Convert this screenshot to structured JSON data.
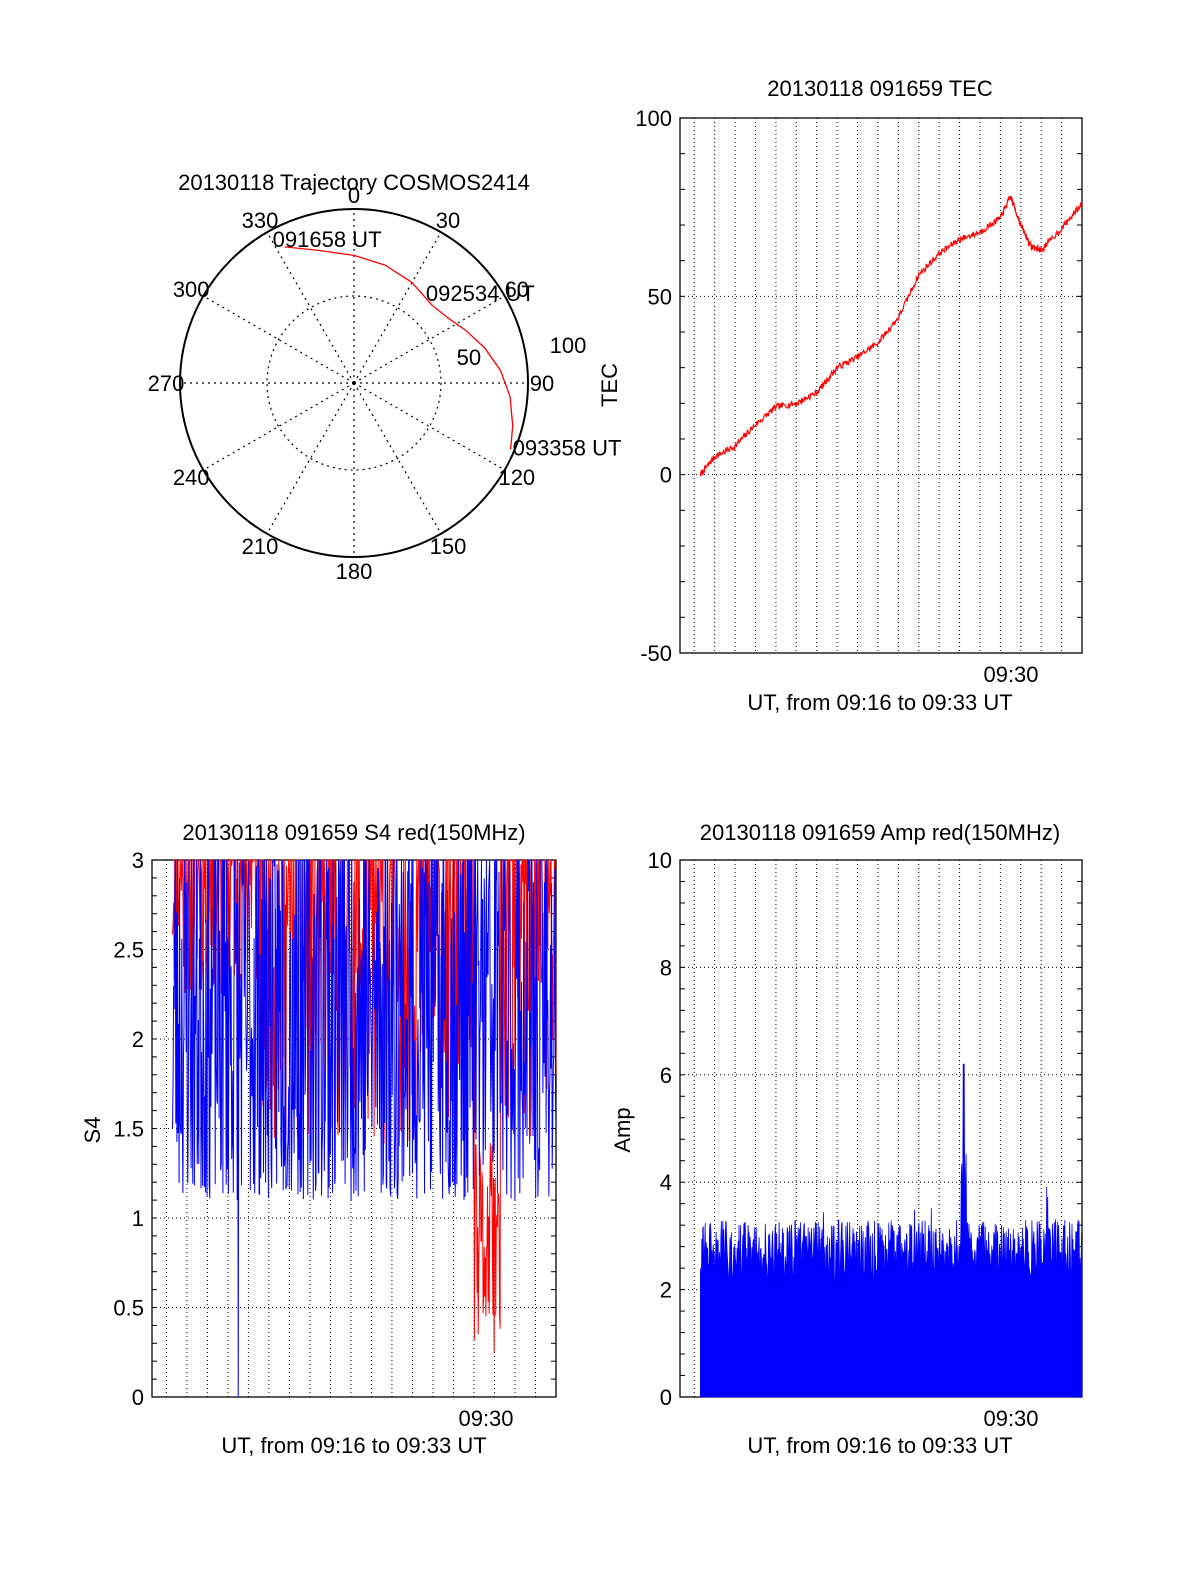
{
  "chart_data": [
    {
      "type": "polar",
      "title": "20130118 Trajectory COSMOS2414",
      "azimuth_labels": [
        "0",
        "30",
        "60",
        "90",
        "120",
        "150",
        "180",
        "210",
        "240",
        "270",
        "300",
        "330"
      ],
      "radial_labels": [
        "50",
        "100"
      ],
      "radial_range": [
        0,
        100
      ],
      "grid": true,
      "trajectory": {
        "color": "#ff0000",
        "points": [
          {
            "az": 333,
            "el": 11
          },
          {
            "az": 345,
            "el": 19
          },
          {
            "az": 0,
            "el": 24
          },
          {
            "az": 15,
            "el": 27
          },
          {
            "az": 30,
            "el": 30
          },
          {
            "az": 45,
            "el": 33
          },
          {
            "az": 55,
            "el": 31
          },
          {
            "az": 65,
            "el": 26
          },
          {
            "az": 75,
            "el": 20
          },
          {
            "az": 85,
            "el": 14
          },
          {
            "az": 95,
            "el": 9
          },
          {
            "az": 105,
            "el": 5
          },
          {
            "az": 113,
            "el": 2
          }
        ],
        "labels": [
          {
            "text": "091658 UT",
            "az": 333,
            "el": 11
          },
          {
            "text": "092534 UT",
            "az": 45,
            "el": 33
          },
          {
            "text": "093358 UT",
            "az": 113,
            "el": 2
          }
        ]
      }
    },
    {
      "type": "line",
      "title": "20130118 091659 TEC",
      "xlabel": "UT, from 09:16 to 09:33 UT",
      "ylabel": "TEC",
      "x_tick_label": "09:30",
      "x_tick_value": 30.0,
      "xlim": [
        14.3,
        34.0
      ],
      "ylim": [
        -50,
        100
      ],
      "y_ticks": [
        -50,
        0,
        50,
        100
      ],
      "grid": true,
      "series": [
        {
          "color": "#ff0000",
          "x": [
            15.3,
            16,
            17,
            18,
            19,
            20,
            21,
            22,
            23,
            24,
            25,
            26,
            27,
            28,
            29,
            30,
            30.5,
            31,
            31.5,
            32,
            33,
            34
          ],
          "y": [
            0,
            5,
            8,
            14,
            19,
            20,
            23,
            30,
            33,
            37,
            44,
            56,
            62,
            66,
            68,
            72,
            78,
            70,
            64,
            63,
            69,
            76
          ]
        }
      ]
    },
    {
      "type": "line",
      "title": "20130118 091659 S4 red(150MHz)",
      "xlabel": "UT, from 09:16 to 09:33 UT",
      "ylabel": "S4",
      "x_tick_label": "09:30",
      "x_tick_value": 30.0,
      "xlim": [
        14.3,
        34.0
      ],
      "ylim": [
        0,
        3
      ],
      "y_ticks": [
        0,
        0.5,
        1,
        1.5,
        2,
        2.5,
        3
      ],
      "grid": true,
      "series": [
        {
          "color": "#ff0000",
          "x_range": [
            15.3,
            34.0
          ],
          "typical_range": [
            1.4,
            3.0
          ],
          "dip": {
            "x_range": [
              30.0,
              31.3
            ],
            "min": 0.22
          }
        },
        {
          "color": "#0000ff",
          "x_range": [
            15.3,
            34.0
          ],
          "typical_range": [
            1.1,
            3.0
          ],
          "spike_down": {
            "x": 18.5,
            "min": 0
          }
        }
      ]
    },
    {
      "type": "area",
      "title": "20130118 091659 Amp red(150MHz)",
      "xlabel": "UT, from 09:16 to 09:33 UT",
      "ylabel": "Amp",
      "x_tick_label": "09:30",
      "x_tick_value": 30.0,
      "xlim": [
        14.3,
        34.0
      ],
      "ylim": [
        0,
        10
      ],
      "y_ticks": [
        0,
        2,
        4,
        6,
        8,
        10
      ],
      "grid": true,
      "series": [
        {
          "color": "#0000ff",
          "x_range": [
            15.3,
            34.0
          ],
          "typical_range": [
            2.1,
            3.3
          ],
          "peak": {
            "x": 28.2,
            "value": 6.2
          }
        }
      ]
    }
  ]
}
